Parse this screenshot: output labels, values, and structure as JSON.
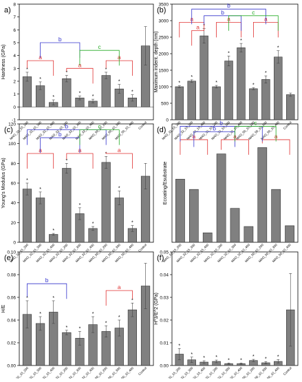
{
  "page": {
    "background": "#ffffff"
  },
  "palette": {
    "bar": "#808080",
    "red": "#e03030",
    "blue": "#3333cc",
    "green": "#22aa22"
  },
  "chart_data": [
    {
      "id": "a",
      "type": "bar",
      "panel_label": "a)",
      "ylabel": "Hardness (GPa)",
      "ylim": [
        -1,
        8
      ],
      "yticks": [
        -1,
        0,
        1,
        2,
        3,
        4,
        5,
        6,
        7,
        8
      ],
      "categories": [
        "MAO_32_15_200",
        "MAO_32_15_300",
        "MAO_32_15_400",
        "MAO_32_10_200",
        "MAO_32_10_300",
        "MAO_32_10_400",
        "MAO_50_10_200",
        "MAO_50_10_300",
        "MAO_50_10_400",
        "Control"
      ],
      "values": [
        2.35,
        1.65,
        0.35,
        2.2,
        0.7,
        0.45,
        2.45,
        1.4,
        0.7,
        4.75
      ],
      "errors": [
        0.35,
        0.3,
        0.2,
        0.25,
        0.15,
        0.15,
        0.25,
        0.35,
        0.25,
        1.5
      ],
      "stars": [
        true,
        true,
        true,
        true,
        true,
        true,
        true,
        true,
        true,
        false
      ],
      "brackets": [
        {
          "label": "a",
          "color": "red",
          "from": 0,
          "to": 2,
          "y": 3.6
        },
        {
          "label": "a",
          "color": "red",
          "from": 3,
          "to": 5,
          "y": 3.0
        },
        {
          "label": "a",
          "color": "red",
          "from": 6,
          "to": 8,
          "y": 3.6
        },
        {
          "label": "b",
          "color": "blue",
          "from": 1,
          "to": 4,
          "y": 5.0
        },
        {
          "label": "c",
          "color": "green",
          "from": 4,
          "to": 7,
          "y": 4.4
        }
      ]
    },
    {
      "id": "b",
      "type": "bar",
      "panel_label": "(b)",
      "ylabel": "Maximum indent. depth (nm)",
      "ylim": [
        0,
        3500
      ],
      "yticks": [
        0,
        500,
        1000,
        1500,
        2000,
        2500,
        3000,
        3500
      ],
      "categories": [
        "MAO_32_15_200",
        "MAO_32_15_300",
        "MAO_32_15_400",
        "MAO_32_10_200",
        "MAO_32_10_300",
        "MAO_32_10_400",
        "MAO_50_10_200",
        "MAO_50_10_300",
        "MAO_50_10_400",
        "Control"
      ],
      "values": [
        1000,
        1170,
        2540,
        1000,
        1780,
        2180,
        940,
        1220,
        1900,
        760
      ],
      "errors": [
        30,
        40,
        220,
        40,
        150,
        130,
        30,
        110,
        190,
        50
      ],
      "stars": [
        true,
        true,
        true,
        true,
        true,
        true,
        true,
        true,
        true,
        false
      ],
      "brackets": [
        {
          "label": "a",
          "color": "red",
          "from": 0,
          "to": 2,
          "y": 2950
        },
        {
          "label": "a",
          "color": "red",
          "from": 1,
          "to": 2,
          "y": 2700
        },
        {
          "label": "a",
          "color": "red",
          "from": 3,
          "to": 5,
          "y": 2950
        },
        {
          "label": "a",
          "color": "red",
          "from": 6,
          "to": 8,
          "y": 2950
        },
        {
          "label": "b",
          "color": "blue",
          "from": 1,
          "to": 7,
          "y": 3350
        },
        {
          "label": "b",
          "color": "blue",
          "from": 2,
          "to": 5,
          "y": 3150
        },
        {
          "label": "c",
          "color": "green",
          "from": 4,
          "to": 8,
          "y": 3150
        }
      ]
    },
    {
      "id": "c",
      "type": "bar",
      "panel_label": "(c)",
      "ylabel": "Young's Modulus  (GPa)",
      "ylim": [
        0,
        120
      ],
      "yticks": [
        0,
        20,
        40,
        60,
        80,
        100,
        120
      ],
      "categories": [
        "MAO_32_15_200",
        "MAO_32_15_300",
        "MAO_32_15_400",
        "MAO_32_10_200",
        "MAO_32_10_300",
        "MAO_32_10_400",
        "MAO_50_10_200",
        "MAO_50_10_300",
        "MAO_50_10_400",
        "Control"
      ],
      "values": [
        54,
        45,
        8,
        75,
        29,
        14,
        81,
        45,
        14,
        67
      ],
      "errors": [
        6,
        6,
        1,
        5,
        6,
        2,
        6,
        7,
        3,
        13
      ],
      "stars": [
        true,
        true,
        true,
        true,
        true,
        true,
        true,
        true,
        true,
        false
      ],
      "brackets": [
        {
          "label": "a",
          "color": "red",
          "from": 0,
          "to": 2,
          "y": 90
        },
        {
          "label": "a",
          "color": "red",
          "from": 3,
          "to": 5,
          "y": 90
        },
        {
          "label": "a",
          "color": "red",
          "from": 6,
          "to": 8,
          "y": 90
        },
        {
          "label": "b",
          "color": "blue",
          "from": 0,
          "to": 6,
          "y": 114
        },
        {
          "label": "b",
          "color": "blue",
          "from": 1,
          "to": 4,
          "y": 106
        },
        {
          "label": "c",
          "color": "green",
          "from": 4,
          "to": 7,
          "y": 114
        }
      ]
    },
    {
      "id": "d",
      "type": "bar",
      "panel_label": "(d)",
      "ylabel": "Ecoating/Esubstrate",
      "ylim": [
        0,
        1.5
      ],
      "yticks": [],
      "categories": [
        "MAO_32_15_200",
        "MAO_32_15_300",
        "MAO_32_15_400",
        "MAO_32_10_200",
        "MAO_32_10_300",
        "MAO_32_10_400",
        "MAO_50_10_200",
        "MAO_50_10_300",
        "MAO_50_10_400"
      ],
      "values": [
        0.8,
        0.67,
        0.12,
        1.12,
        0.43,
        0.2,
        1.2,
        0.67,
        0.21
      ],
      "errors": [
        0,
        0,
        0,
        0,
        0,
        0,
        0,
        0,
        0
      ],
      "stars": [
        false,
        false,
        false,
        false,
        false,
        false,
        false,
        false,
        false
      ],
      "brackets": [
        {
          "label": "a",
          "color": "red",
          "from": 0,
          "to": 2,
          "y": 1.3
        },
        {
          "label": "a",
          "color": "red",
          "from": 3,
          "to": 5,
          "y": 1.3
        },
        {
          "label": "a",
          "color": "red",
          "from": 6,
          "to": 8,
          "y": 1.3
        },
        {
          "label": "b",
          "color": "blue",
          "from": 0,
          "to": 6,
          "y": 1.47
        },
        {
          "label": "b",
          "color": "blue",
          "from": 1,
          "to": 4,
          "y": 1.4
        },
        {
          "label": "c",
          "color": "green",
          "from": 4,
          "to": 7,
          "y": 1.47
        }
      ]
    },
    {
      "id": "e",
      "type": "bar",
      "panel_label": "(e)",
      "ylabel": "H/E",
      "ylim": [
        0,
        0.1
      ],
      "yticks": [
        0.0,
        0.02,
        0.04,
        0.06,
        0.08,
        0.1
      ],
      "categories": [
        "MAO_32_15_200",
        "MAO_32_15_300",
        "MAO_32_15_400",
        "MAO_32_10_200",
        "MAO_32_10_300",
        "MAO_32_10_400",
        "MAO_50_10_200",
        "MAO_50_10_300",
        "MAO_50_10_400",
        "Control"
      ],
      "values": [
        0.045,
        0.037,
        0.047,
        0.029,
        0.024,
        0.036,
        0.03,
        0.033,
        0.049,
        0.07
      ],
      "errors": [
        0.012,
        0.006,
        0.01,
        0.002,
        0.006,
        0.007,
        0.005,
        0.007,
        0.006,
        0.02
      ],
      "stars": [
        true,
        true,
        true,
        true,
        true,
        true,
        true,
        true,
        true,
        false
      ],
      "brackets": [
        {
          "label": "b",
          "color": "blue",
          "from": 0,
          "to": 3,
          "y": 0.072
        },
        {
          "label": "a",
          "color": "red",
          "from": 6,
          "to": 8,
          "y": 0.066
        }
      ]
    },
    {
      "id": "f",
      "type": "bar",
      "panel_label": "(f)",
      "ylabel": "H^3/E^2 (GPa)",
      "ylim": [
        0,
        0.05
      ],
      "yticks": [
        0.0,
        0.01,
        0.02,
        0.03,
        0.04,
        0.05
      ],
      "categories": [
        "MAO_32_15_200",
        "MAO_32_15_300",
        "MAO_32_15_400",
        "MAO_32_10_200",
        "MAO_32_10_300",
        "MAO_32_10_400",
        "MAO_50_10_200",
        "MAO_50_10_300",
        "MAO_50_10_400",
        "Control"
      ],
      "values": [
        0.005,
        0.0025,
        0.0015,
        0.0018,
        0.0008,
        0.0008,
        0.0022,
        0.0012,
        0.0018,
        0.0245
      ],
      "errors": [
        0.0025,
        0.0012,
        0.0006,
        0.0006,
        0.0003,
        0.0003,
        0.0005,
        0.0005,
        0.0008,
        0.016
      ],
      "stars": [
        true,
        true,
        true,
        true,
        true,
        true,
        true,
        true,
        true,
        false
      ],
      "brackets": []
    }
  ]
}
